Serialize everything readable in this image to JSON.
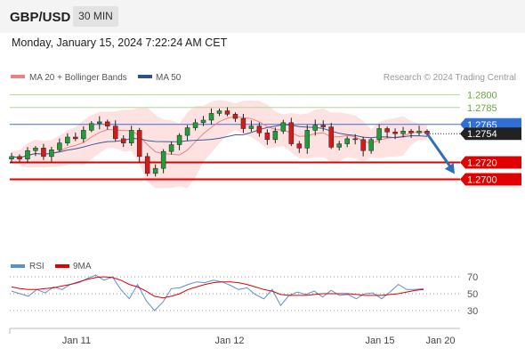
{
  "header": {
    "symbol": "GBP/USD",
    "timeframe": "30 MIN"
  },
  "timestamp": "Monday, January 15, 2024 7:22:24 AM CET",
  "legend": {
    "main": [
      {
        "label": "MA 20 + Bollinger Bands",
        "color": "#f08080"
      },
      {
        "label": "MA 50",
        "color": "#2f4f8f"
      }
    ],
    "rsi": [
      {
        "label": "RSI",
        "color": "#5b8fd6"
      },
      {
        "label": "9MA",
        "color": "#e00000"
      }
    ]
  },
  "credit": "Research © 2024 Trading Central",
  "chart_data": [
    {
      "type": "candlestick",
      "x_labels": [
        "Jan 11",
        "Jan 12",
        "Jan 15",
        "Jan 20"
      ],
      "ylim": [
        1.269,
        1.2812
      ],
      "levels": [
        {
          "value": 1.28,
          "label": "1.2800",
          "style": "target"
        },
        {
          "value": 1.2785,
          "label": "1.2785",
          "style": "target"
        },
        {
          "value": 1.2765,
          "label": "1.2765",
          "style": "pivot"
        },
        {
          "value": 1.272,
          "label": "1.2720",
          "style": "support"
        },
        {
          "value": 1.27,
          "label": "1.2700",
          "style": "support"
        }
      ],
      "last_price": {
        "value": 1.2754,
        "label": "1.2754"
      },
      "forecast": {
        "from": 1.2754,
        "to": 1.27,
        "color": "#2f6fb8"
      },
      "close_path": [
        1.2727,
        1.2724,
        1.2734,
        1.2737,
        1.2727,
        1.2735,
        1.2743,
        1.275,
        1.2748,
        1.2758,
        1.2766,
        1.2768,
        1.2763,
        1.2748,
        1.2743,
        1.2758,
        1.2727,
        1.2707,
        1.2713,
        1.2733,
        1.2741,
        1.2752,
        1.2761,
        1.2767,
        1.277,
        1.2778,
        1.2781,
        1.2777,
        1.2772,
        1.276,
        1.2763,
        1.2755,
        1.2747,
        1.2757,
        1.2767,
        1.2742,
        1.2737,
        1.2758,
        1.2764,
        1.2762,
        1.2738,
        1.2742,
        1.2748,
        1.2747,
        1.2734,
        1.2747,
        1.276,
        1.2756,
        1.2754,
        1.2757,
        1.2755,
        1.2757,
        1.2754
      ]
    },
    {
      "type": "line",
      "title": "RSI",
      "ylim": [
        20,
        80
      ],
      "ticks": [
        70,
        50,
        30
      ],
      "series": [
        {
          "name": "RSI",
          "values": [
            53,
            50,
            47,
            55,
            51,
            58,
            55,
            61,
            63,
            68,
            72,
            66,
            70,
            55,
            44,
            61,
            42,
            30,
            40,
            56,
            57,
            61,
            64,
            63,
            66,
            64,
            60,
            55,
            57,
            49,
            44,
            55,
            36,
            48,
            52,
            49,
            53,
            46,
            54,
            48,
            49,
            44,
            50,
            51,
            44,
            52,
            61,
            55,
            55,
            56
          ]
        },
        {
          "name": "9MA",
          "values": [
            58,
            56,
            55,
            55,
            56,
            57,
            59,
            61,
            64,
            67,
            69,
            70,
            69,
            66,
            61,
            58,
            53,
            47,
            45,
            47,
            50,
            55,
            58,
            61,
            63,
            64,
            64,
            63,
            61,
            58,
            55,
            53,
            49,
            48,
            48,
            48,
            49,
            50,
            50,
            50,
            50,
            49,
            48,
            48,
            48,
            49,
            50,
            52,
            54,
            55
          ]
        }
      ]
    }
  ]
}
